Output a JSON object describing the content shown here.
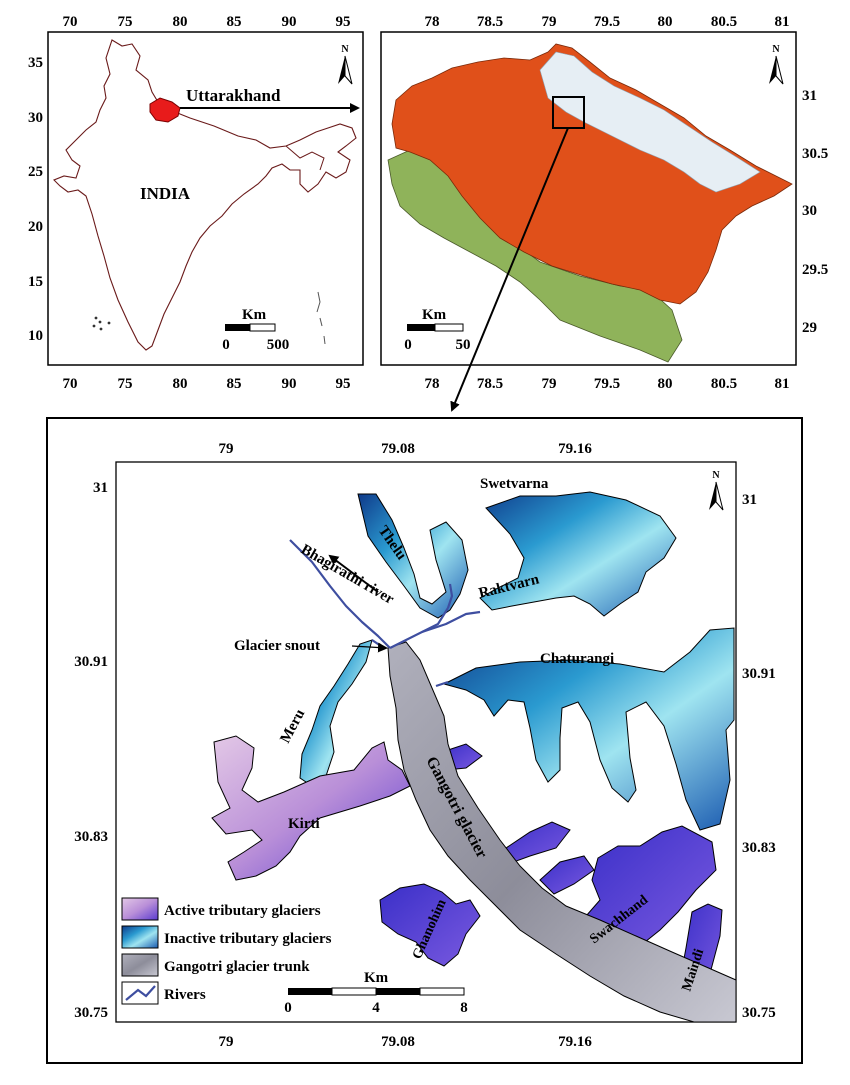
{
  "india_map": {
    "x_ticks": [
      "70",
      "75",
      "80",
      "85",
      "90",
      "95"
    ],
    "y_ticks": [
      "35",
      "30",
      "25",
      "20",
      "15",
      "10"
    ],
    "country_label": "INDIA",
    "state_label": "Uttarakhand",
    "north_label": "N",
    "scalebar": {
      "unit": "Km",
      "start": "0",
      "end": "500"
    }
  },
  "uttarakhand_map": {
    "x_ticks": [
      "78",
      "78.5",
      "79",
      "79.5",
      "80",
      "80.5",
      "81"
    ],
    "y_ticks": [
      "31",
      "30.5",
      "30",
      "29.5",
      "29"
    ],
    "north_label": "N",
    "scalebar": {
      "unit": "Km",
      "start": "0",
      "end": "50"
    }
  },
  "gangotri_map": {
    "x_ticks": [
      "79",
      "79.08",
      "79.16"
    ],
    "y_ticks": [
      "31",
      "30.91",
      "30.83",
      "30.75"
    ],
    "north_label": "N",
    "scalebar": {
      "unit": "Km",
      "start": "0",
      "mid": "4",
      "end": "8"
    },
    "labels": {
      "thelu": "Thelu",
      "swetvarna": "Swetvarna",
      "raktvarn": "Raktvarn",
      "chaturangi": "Chaturangi",
      "bhagirathi": "Bhagirathi river",
      "snout": "Glacier snout",
      "meru": "Meru",
      "kirti": "Kirti",
      "gangotri": "Gangotri glacier",
      "ghanohim": "Ghanohim",
      "swachhand": "Swachhand",
      "maindi": "Maindi"
    },
    "legend": [
      {
        "label": "Active tributary glaciers",
        "color": "#7a55d8"
      },
      {
        "label": "Inactive tributary glaciers",
        "color": "#2a9ad0"
      },
      {
        "label": "Gangotri glacier trunk",
        "color": "#8d8d9a"
      },
      {
        "label": "Rivers",
        "color": "#3e4ea0"
      }
    ]
  }
}
